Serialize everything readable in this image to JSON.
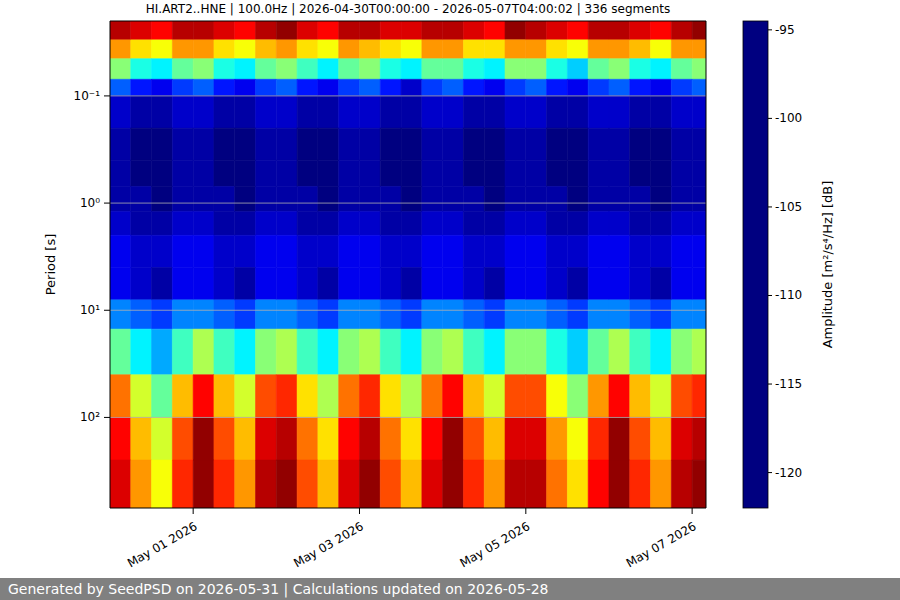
{
  "chart_data": {
    "type": "heatmap",
    "title": "HI.ART2..HNE | 100.0Hz | 2026-04-30T00:00:00 - 2026-05-07T04:00:02 | 336 segments",
    "footer": "Generated by SeedPSD on 2026-05-31 | Calculations updated on 2026-05-28",
    "y_label": "Period [s]",
    "log": "y",
    "grid": true,
    "xlim": [
      "2026-04-30T00:00:00",
      "2026-05-07T04:00:02"
    ],
    "xticks": [
      {
        "value": "2026-05-01T00:00:00",
        "label": "May 01 2026"
      },
      {
        "value": "2026-05-03T00:00:00",
        "label": "May 03 2026"
      },
      {
        "value": "2026-05-05T00:00:00",
        "label": "May 05 2026"
      },
      {
        "value": "2026-05-07T00:00:00",
        "label": "May 07 2026"
      }
    ],
    "ylim": [
      0.02,
      700
    ],
    "yticks": [
      {
        "value": 0.1,
        "label": "10⁻¹"
      },
      {
        "value": 1,
        "label": "10⁰"
      },
      {
        "value": 10,
        "label": "10¹"
      },
      {
        "value": 100,
        "label": "10²"
      }
    ],
    "time_bins": [
      "2026-04-30T00:00:00",
      "2026-04-30T06:00:00",
      "2026-04-30T12:00:00",
      "2026-04-30T18:00:00",
      "2026-05-01T00:00:00",
      "2026-05-01T06:00:00",
      "2026-05-01T12:00:00",
      "2026-05-01T18:00:00",
      "2026-05-02T00:00:00",
      "2026-05-02T06:00:00",
      "2026-05-02T12:00:00",
      "2026-05-02T18:00:00",
      "2026-05-03T00:00:00",
      "2026-05-03T06:00:00",
      "2026-05-03T12:00:00",
      "2026-05-03T18:00:00",
      "2026-05-04T00:00:00",
      "2026-05-04T06:00:00",
      "2026-05-04T12:00:00",
      "2026-05-04T18:00:00",
      "2026-05-05T00:00:00",
      "2026-05-05T06:00:00",
      "2026-05-05T12:00:00",
      "2026-05-05T18:00:00",
      "2026-05-06T00:00:00",
      "2026-05-06T06:00:00",
      "2026-05-06T12:00:00",
      "2026-05-06T18:00:00",
      "2026-05-07T00:00:00",
      "2026-05-07T04:00:02"
    ],
    "period_bins": [
      0.02,
      0.03,
      0.045,
      0.07,
      0.1,
      0.2,
      0.4,
      0.7,
      1.2,
      2,
      4,
      8,
      15,
      40,
      100,
      250,
      700
    ],
    "cells": [
      [
        -96,
        -97,
        -98,
        -96,
        -96,
        -97,
        -98,
        -96,
        -95,
        -97,
        -98,
        -96,
        -96,
        -97,
        -97,
        -96,
        -96,
        -97,
        -98,
        -95,
        -96,
        -97,
        -98,
        -96,
        -96,
        -97,
        -98,
        -96,
        -95
      ],
      [
        -102,
        -104,
        -105,
        -102,
        -102,
        -104,
        -105,
        -103,
        -102,
        -104,
        -105,
        -102,
        -103,
        -104,
        -105,
        -102,
        -102,
        -104,
        -104,
        -102,
        -102,
        -104,
        -105,
        -102,
        -102,
        -103,
        -105,
        -102,
        -102
      ],
      [
        -108,
        -111,
        -112,
        -109,
        -108,
        -111,
        -112,
        -109,
        -108,
        -110,
        -112,
        -109,
        -108,
        -111,
        -112,
        -109,
        -109,
        -111,
        -112,
        -108,
        -108,
        -111,
        -113,
        -109,
        -108,
        -111,
        -112,
        -109,
        -108
      ],
      [
        -116,
        -118,
        -119,
        -117,
        -116,
        -118,
        -119,
        -117,
        -116,
        -118,
        -119,
        -117,
        -116,
        -118,
        -120,
        -117,
        -116,
        -118,
        -119,
        -117,
        -116,
        -118,
        -119,
        -117,
        -116,
        -118,
        -119,
        -117,
        -116
      ],
      [
        -120,
        -121,
        -121,
        -120,
        -120,
        -121,
        -121,
        -120,
        -120,
        -121,
        -121,
        -120,
        -120,
        -121,
        -121,
        -120,
        -120,
        -121,
        -121,
        -120,
        -120,
        -121,
        -121,
        -120,
        -120,
        -121,
        -121,
        -120,
        -120
      ],
      [
        -121,
        -122,
        -122,
        -121,
        -121,
        -122,
        -122,
        -121,
        -121,
        -122,
        -122,
        -121,
        -121,
        -122,
        -122,
        -121,
        -121,
        -122,
        -122,
        -121,
        -121,
        -122,
        -122,
        -121,
        -121,
        -122,
        -122,
        -121,
        -121
      ],
      [
        -121,
        -122,
        -122,
        -121,
        -121,
        -122,
        -122,
        -121,
        -121,
        -122,
        -122,
        -121,
        -121,
        -122,
        -122,
        -121,
        -121,
        -122,
        -122,
        -121,
        -121,
        -122,
        -122,
        -121,
        -121,
        -122,
        -122,
        -121,
        -121
      ],
      [
        -121,
        -121,
        -122,
        -121,
        -121,
        -121,
        -122,
        -121,
        -121,
        -121,
        -122,
        -121,
        -121,
        -121,
        -122,
        -121,
        -121,
        -121,
        -122,
        -121,
        -121,
        -121,
        -122,
        -121,
        -121,
        -121,
        -122,
        -121,
        -121
      ],
      [
        -120,
        -121,
        -121,
        -120,
        -120,
        -121,
        -121,
        -120,
        -120,
        -121,
        -121,
        -120,
        -120,
        -121,
        -121,
        -120,
        -120,
        -121,
        -121,
        -120,
        -120,
        -121,
        -121,
        -120,
        -120,
        -121,
        -121,
        -120,
        -120
      ],
      [
        -119,
        -120,
        -120,
        -119,
        -119,
        -120,
        -120,
        -119,
        -119,
        -120,
        -120,
        -119,
        -119,
        -120,
        -120,
        -119,
        -119,
        -120,
        -120,
        -119,
        -119,
        -120,
        -120,
        -119,
        -119,
        -120,
        -120,
        -119,
        -119
      ],
      [
        -119,
        -120,
        -121,
        -119,
        -119,
        -120,
        -121,
        -119,
        -119,
        -120,
        -121,
        -119,
        -119,
        -120,
        -121,
        -119,
        -119,
        -120,
        -121,
        -119,
        -119,
        -120,
        -121,
        -119,
        -119,
        -120,
        -121,
        -119,
        -119
      ],
      [
        -115,
        -116,
        -117,
        -115,
        -115,
        -116,
        -117,
        -115,
        -115,
        -116,
        -117,
        -115,
        -115,
        -116,
        -117,
        -115,
        -115,
        -116,
        -117,
        -115,
        -115,
        -116,
        -117,
        -115,
        -115,
        -116,
        -117,
        -115,
        -115
      ],
      [
        -109,
        -112,
        -114,
        -110,
        -107,
        -110,
        -112,
        -108,
        -107,
        -110,
        -112,
        -108,
        -107,
        -110,
        -112,
        -108,
        -107,
        -110,
        -112,
        -108,
        -108,
        -111,
        -113,
        -109,
        -107,
        -110,
        -112,
        -108,
        -107
      ],
      [
        -101,
        -106,
        -109,
        -103,
        -98,
        -103,
        -106,
        -100,
        -99,
        -104,
        -107,
        -101,
        -99,
        -104,
        -107,
        -101,
        -98,
        -103,
        -106,
        -100,
        -100,
        -105,
        -108,
        -102,
        -98,
        -103,
        -106,
        -100,
        -99
      ],
      [
        -98,
        -103,
        -106,
        -100,
        -95,
        -100,
        -103,
        -97,
        -96,
        -101,
        -104,
        -98,
        -96,
        -101,
        -104,
        -98,
        -95,
        -100,
        -103,
        -97,
        -97,
        -102,
        -105,
        -99,
        -95,
        -100,
        -103,
        -97,
        -96
      ],
      [
        -97,
        -102,
        -105,
        -99,
        -95,
        -99,
        -102,
        -96,
        -95,
        -100,
        -103,
        -97,
        -95,
        -100,
        -103,
        -97,
        -95,
        -99,
        -102,
        -96,
        -96,
        -101,
        -104,
        -98,
        -95,
        -99,
        -102,
        -96,
        -95
      ]
    ],
    "colorbar": {
      "label": "Amplitude [m²/s⁴/Hz] [dB]",
      "lim": [
        -122,
        -94.5
      ],
      "ticks": [
        -120,
        -115,
        -110,
        -105,
        -100,
        -95
      ]
    }
  }
}
